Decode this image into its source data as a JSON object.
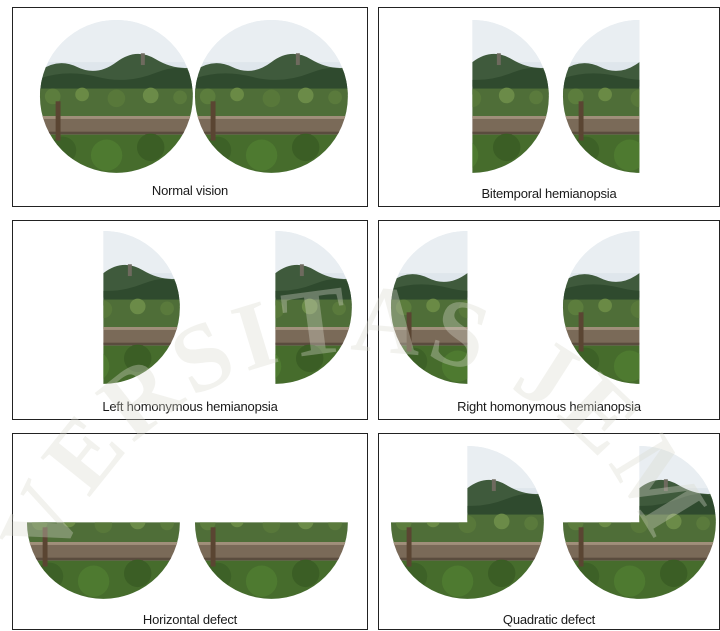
{
  "panels": [
    {
      "caption": "Normal vision"
    },
    {
      "caption": "Bitemporal hemianopsia"
    },
    {
      "caption": "Left homonymous hemianopsia"
    },
    {
      "caption": "Right homonymous hemianopsia"
    },
    {
      "caption": "Horizontal defect"
    },
    {
      "caption": "Quadratic defect"
    }
  ],
  "watermark": {
    "text": "UNIVERSITAS JEMBER",
    "color": "#d9d9ce"
  }
}
